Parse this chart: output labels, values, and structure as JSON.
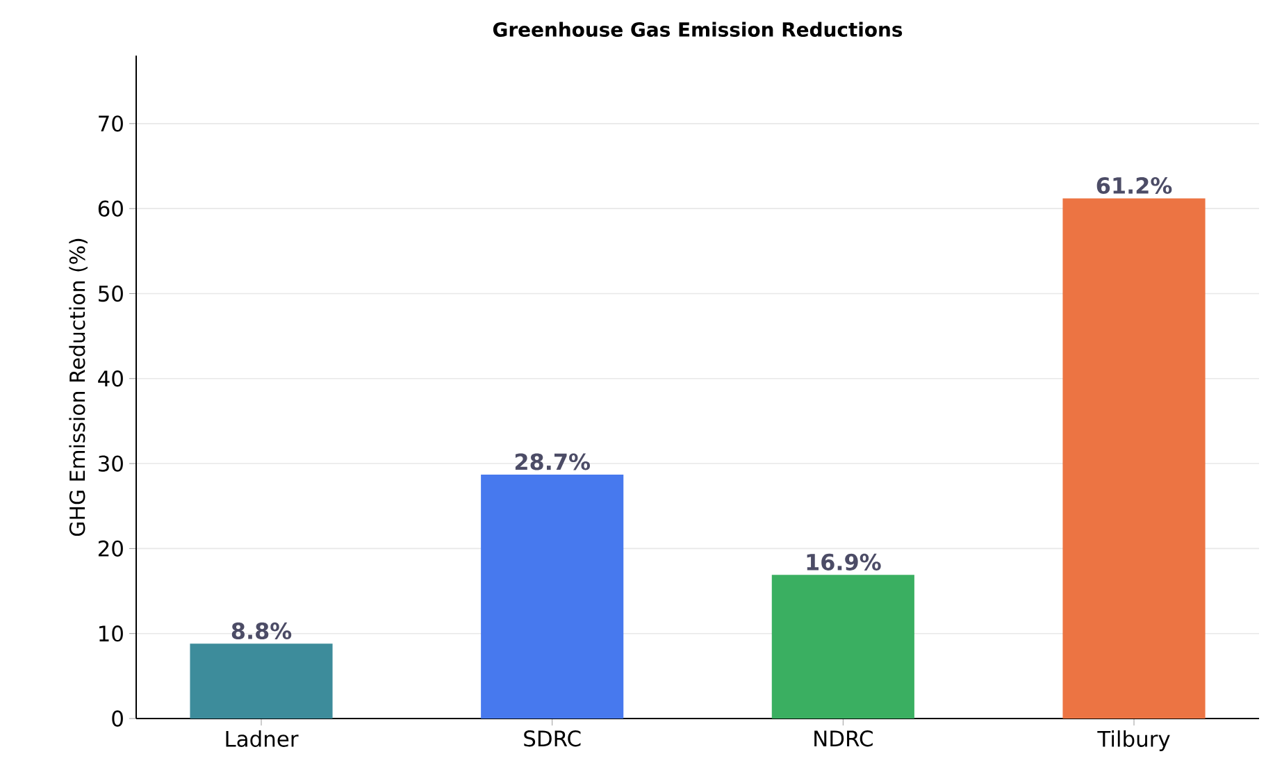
{
  "chart_data": {
    "type": "bar",
    "title": "Greenhouse Gas Emission Reductions",
    "ylabel": "GHG Emission Reduction (%)",
    "categories": [
      "Ladner",
      "SDRC",
      "NDRC",
      "Tilbury"
    ],
    "values": [
      8.8,
      28.7,
      16.9,
      61.2
    ],
    "colors": [
      "#3d8c9b",
      "#4779ee",
      "#3aaf61",
      "#ec7443"
    ],
    "value_labels": [
      "8.8%",
      "28.7%",
      "16.9%",
      "61.2%"
    ],
    "ylim": [
      0,
      78
    ],
    "yticks": [
      0,
      10,
      20,
      30,
      40,
      50,
      60,
      70
    ],
    "grid": "y"
  }
}
